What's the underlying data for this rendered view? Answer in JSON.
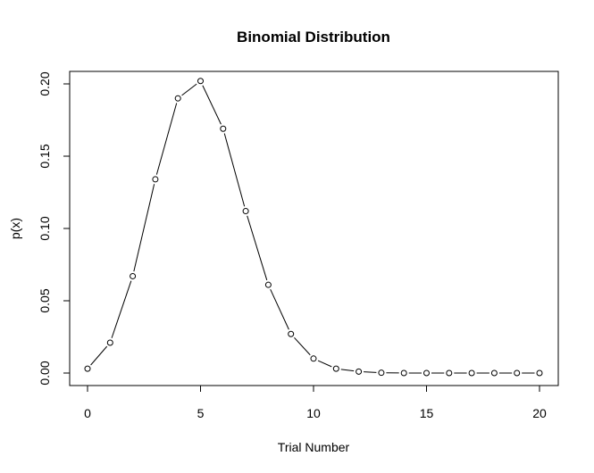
{
  "chart_data": {
    "type": "line",
    "title": "Binomial Distribution",
    "xlabel": "Trial Number",
    "ylabel": "p(x)",
    "xlim": [
      0,
      20
    ],
    "ylim": [
      0,
      0.2
    ],
    "x_ticks": [
      0,
      5,
      10,
      15,
      20
    ],
    "y_ticks": [
      0.0,
      0.05,
      0.1,
      0.15,
      0.2
    ],
    "x_tick_labels": [
      "0",
      "5",
      "10",
      "15",
      "20"
    ],
    "y_tick_labels": [
      "0.00",
      "0.05",
      "0.10",
      "0.15",
      "0.20"
    ],
    "grid": false,
    "marker": "open-circle",
    "line_style": "both",
    "series": [
      {
        "x": [
          0,
          1,
          2,
          3,
          4,
          5,
          6,
          7,
          8,
          9,
          10,
          11,
          12,
          13,
          14,
          15,
          16,
          17,
          18,
          19,
          20
        ],
        "values": [
          0.003,
          0.021,
          0.067,
          0.134,
          0.19,
          0.202,
          0.169,
          0.112,
          0.061,
          0.027,
          0.01,
          0.003,
          0.001,
          0.0002,
          0.0,
          0.0,
          0.0,
          0.0,
          0.0,
          0.0,
          0.0
        ]
      }
    ]
  }
}
